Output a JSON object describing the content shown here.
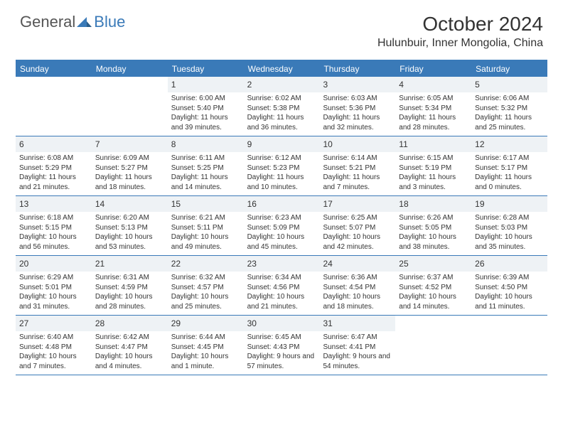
{
  "logo": {
    "general": "General",
    "blue": "Blue"
  },
  "title": "October 2024",
  "location": "Hulunbuir, Inner Mongolia, China",
  "colors": {
    "accent": "#3a7ab8",
    "daynum_bg": "#eef2f5",
    "text": "#333333",
    "logo_gray": "#555555"
  },
  "daysOfWeek": [
    "Sunday",
    "Monday",
    "Tuesday",
    "Wednesday",
    "Thursday",
    "Friday",
    "Saturday"
  ],
  "weeks": [
    [
      null,
      null,
      {
        "n": "1",
        "sr": "6:00 AM",
        "ss": "5:40 PM",
        "dl": "11 hours and 39 minutes."
      },
      {
        "n": "2",
        "sr": "6:02 AM",
        "ss": "5:38 PM",
        "dl": "11 hours and 36 minutes."
      },
      {
        "n": "3",
        "sr": "6:03 AM",
        "ss": "5:36 PM",
        "dl": "11 hours and 32 minutes."
      },
      {
        "n": "4",
        "sr": "6:05 AM",
        "ss": "5:34 PM",
        "dl": "11 hours and 28 minutes."
      },
      {
        "n": "5",
        "sr": "6:06 AM",
        "ss": "5:32 PM",
        "dl": "11 hours and 25 minutes."
      }
    ],
    [
      {
        "n": "6",
        "sr": "6:08 AM",
        "ss": "5:29 PM",
        "dl": "11 hours and 21 minutes."
      },
      {
        "n": "7",
        "sr": "6:09 AM",
        "ss": "5:27 PM",
        "dl": "11 hours and 18 minutes."
      },
      {
        "n": "8",
        "sr": "6:11 AM",
        "ss": "5:25 PM",
        "dl": "11 hours and 14 minutes."
      },
      {
        "n": "9",
        "sr": "6:12 AM",
        "ss": "5:23 PM",
        "dl": "11 hours and 10 minutes."
      },
      {
        "n": "10",
        "sr": "6:14 AM",
        "ss": "5:21 PM",
        "dl": "11 hours and 7 minutes."
      },
      {
        "n": "11",
        "sr": "6:15 AM",
        "ss": "5:19 PM",
        "dl": "11 hours and 3 minutes."
      },
      {
        "n": "12",
        "sr": "6:17 AM",
        "ss": "5:17 PM",
        "dl": "11 hours and 0 minutes."
      }
    ],
    [
      {
        "n": "13",
        "sr": "6:18 AM",
        "ss": "5:15 PM",
        "dl": "10 hours and 56 minutes."
      },
      {
        "n": "14",
        "sr": "6:20 AM",
        "ss": "5:13 PM",
        "dl": "10 hours and 53 minutes."
      },
      {
        "n": "15",
        "sr": "6:21 AM",
        "ss": "5:11 PM",
        "dl": "10 hours and 49 minutes."
      },
      {
        "n": "16",
        "sr": "6:23 AM",
        "ss": "5:09 PM",
        "dl": "10 hours and 45 minutes."
      },
      {
        "n": "17",
        "sr": "6:25 AM",
        "ss": "5:07 PM",
        "dl": "10 hours and 42 minutes."
      },
      {
        "n": "18",
        "sr": "6:26 AM",
        "ss": "5:05 PM",
        "dl": "10 hours and 38 minutes."
      },
      {
        "n": "19",
        "sr": "6:28 AM",
        "ss": "5:03 PM",
        "dl": "10 hours and 35 minutes."
      }
    ],
    [
      {
        "n": "20",
        "sr": "6:29 AM",
        "ss": "5:01 PM",
        "dl": "10 hours and 31 minutes."
      },
      {
        "n": "21",
        "sr": "6:31 AM",
        "ss": "4:59 PM",
        "dl": "10 hours and 28 minutes."
      },
      {
        "n": "22",
        "sr": "6:32 AM",
        "ss": "4:57 PM",
        "dl": "10 hours and 25 minutes."
      },
      {
        "n": "23",
        "sr": "6:34 AM",
        "ss": "4:56 PM",
        "dl": "10 hours and 21 minutes."
      },
      {
        "n": "24",
        "sr": "6:36 AM",
        "ss": "4:54 PM",
        "dl": "10 hours and 18 minutes."
      },
      {
        "n": "25",
        "sr": "6:37 AM",
        "ss": "4:52 PM",
        "dl": "10 hours and 14 minutes."
      },
      {
        "n": "26",
        "sr": "6:39 AM",
        "ss": "4:50 PM",
        "dl": "10 hours and 11 minutes."
      }
    ],
    [
      {
        "n": "27",
        "sr": "6:40 AM",
        "ss": "4:48 PM",
        "dl": "10 hours and 7 minutes."
      },
      {
        "n": "28",
        "sr": "6:42 AM",
        "ss": "4:47 PM",
        "dl": "10 hours and 4 minutes."
      },
      {
        "n": "29",
        "sr": "6:44 AM",
        "ss": "4:45 PM",
        "dl": "10 hours and 1 minute."
      },
      {
        "n": "30",
        "sr": "6:45 AM",
        "ss": "4:43 PM",
        "dl": "9 hours and 57 minutes."
      },
      {
        "n": "31",
        "sr": "6:47 AM",
        "ss": "4:41 PM",
        "dl": "9 hours and 54 minutes."
      },
      null,
      null
    ]
  ],
  "labels": {
    "sunrise": "Sunrise:",
    "sunset": "Sunset:",
    "daylight": "Daylight:"
  }
}
